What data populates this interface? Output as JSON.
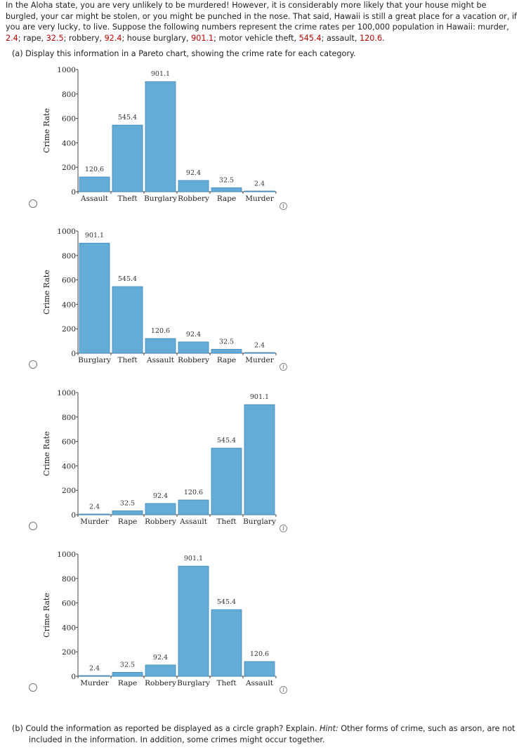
{
  "intro": {
    "text_pre": "In the Aloha state, you are very unlikely to be murdered! However, it is considerably more likely that your house might be burgled, your car might be stolen, or you might be punched in the nose. That said, Hawaii is still a great place for a vacation or, if you are very lucky, to live. Suppose the following numbers represent the crime rates per 100,000 population in Hawaii: murder, ",
    "murder": "2.4",
    "sep_rape": "; rape, ",
    "rape": "32.5",
    "sep_robbery": "; robbery, ",
    "robbery": "92.4",
    "sep_burglary": "; house burglary, ",
    "burglary": "901.1",
    "sep_mvt": "; motor vehicle theft, ",
    "mvt": "545.4",
    "sep_assault": "; assault, ",
    "assault": "120.6",
    "end": "."
  },
  "part_a": "(a)   Display this information in a Pareto chart, showing the crime rate for each category.",
  "part_b": {
    "text_pre": "(b)   Could the information as reported be displayed as a circle graph? Explain. ",
    "hint_label": "Hint:",
    "hint_text": " Other forms of crime, such as arson, are not included in the information. In addition, some crimes might occur together."
  },
  "info_glyph": "i",
  "colors": {
    "bar": "#64acd8",
    "bar_edge": "#3f87b8",
    "accent_red": "#c00000"
  },
  "chart_data": [
    {
      "type": "bar",
      "option": 1,
      "categories": [
        "Assault",
        "Theft",
        "Burglary",
        "Robbery",
        "Rape",
        "Murder"
      ],
      "values": [
        120.6,
        545.4,
        901.1,
        92.4,
        32.5,
        2.4
      ],
      "value_labels": [
        "120.6",
        "545.4",
        "901.1",
        "92.4",
        "32.5",
        "2.4"
      ],
      "ylabel": "Crime Rate",
      "yticks": [
        "0",
        "200",
        "400",
        "600",
        "800",
        "1000"
      ],
      "ylim": [
        0,
        1000
      ]
    },
    {
      "type": "bar",
      "option": 2,
      "categories": [
        "Burglary",
        "Theft",
        "Assault",
        "Robbery",
        "Rape",
        "Murder"
      ],
      "values": [
        901.1,
        545.4,
        120.6,
        92.4,
        32.5,
        2.4
      ],
      "value_labels": [
        "901.1",
        "545.4",
        "120.6",
        "92.4",
        "32.5",
        "2.4"
      ],
      "ylabel": "Crime Rate",
      "yticks": [
        "0",
        "200",
        "400",
        "600",
        "800",
        "1000"
      ],
      "ylim": [
        0,
        1000
      ]
    },
    {
      "type": "bar",
      "option": 3,
      "categories": [
        "Murder",
        "Rape",
        "Robbery",
        "Assault",
        "Theft",
        "Burglary"
      ],
      "values": [
        2.4,
        32.5,
        92.4,
        120.6,
        545.4,
        901.1
      ],
      "value_labels": [
        "2.4",
        "32.5",
        "92.4",
        "120.6",
        "545.4",
        "901.1"
      ],
      "ylabel": "Crime Rate",
      "yticks": [
        "0",
        "200",
        "400",
        "600",
        "800",
        "1000"
      ],
      "ylim": [
        0,
        1000
      ]
    },
    {
      "type": "bar",
      "option": 4,
      "categories": [
        "Murder",
        "Rape",
        "Robbery",
        "Burglary",
        "Theft",
        "Assault"
      ],
      "values": [
        2.4,
        32.5,
        92.4,
        901.1,
        545.4,
        120.6
      ],
      "value_labels": [
        "2.4",
        "32.5",
        "92.4",
        "901.1",
        "545.4",
        "120.6"
      ],
      "ylabel": "Crime Rate",
      "yticks": [
        "0",
        "200",
        "400",
        "600",
        "800",
        "1000"
      ],
      "ylim": [
        0,
        1000
      ]
    }
  ]
}
